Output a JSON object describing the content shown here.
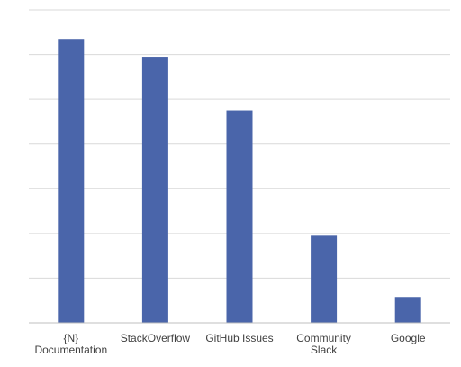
{
  "chart_data": {
    "type": "bar",
    "title": "",
    "xlabel": "",
    "ylabel": "",
    "categories": [
      [
        "{N}",
        "Documentation"
      ],
      [
        "StackOverflow"
      ],
      [
        "GitHub Issues"
      ],
      [
        "Community",
        "Slack"
      ],
      [
        "Google"
      ]
    ],
    "values": [
      63.5,
      59.5,
      47.5,
      19.5,
      5.8
    ],
    "ylim": [
      0,
      70
    ],
    "grid": true,
    "grid_step": 10,
    "tick_labels_visible": false,
    "legend": "none",
    "colors": {
      "bar": "#4a65aa",
      "grid": "#d9d9d9",
      "axis": "#bfbfbf",
      "label_text": "#404040"
    }
  }
}
